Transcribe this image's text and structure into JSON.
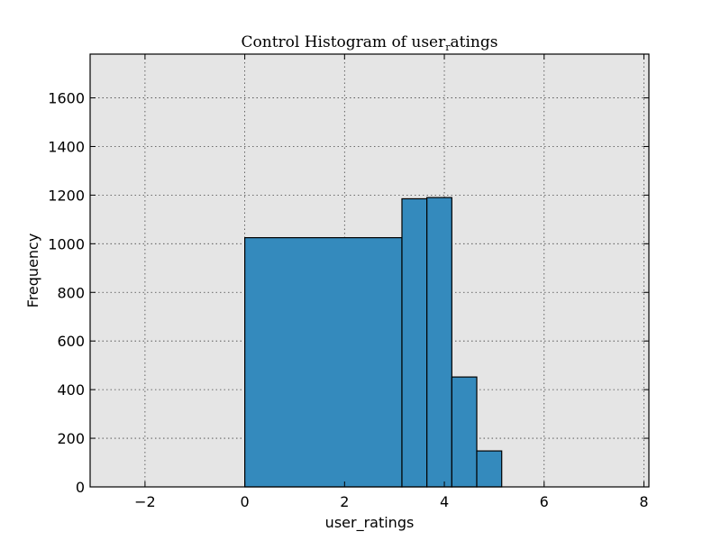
{
  "chart_data": {
    "type": "bar",
    "title": "Control Histogram of user",
    "title_subscript": "r",
    "title_suffix": "atings",
    "xlabel": "user_ratings",
    "ylabel": "Frequency",
    "xlim": [
      -3.1,
      8.1
    ],
    "ylim": [
      0,
      1780
    ],
    "xticks": [
      -2,
      0,
      2,
      4,
      6,
      8
    ],
    "xtick_labels": [
      "−2",
      "0",
      "2",
      "4",
      "6",
      "8"
    ],
    "yticks": [
      0,
      200,
      400,
      600,
      800,
      1000,
      1200,
      1400,
      1600
    ],
    "ytick_labels": [
      "0",
      "200",
      "400",
      "600",
      "800",
      "1000",
      "1200",
      "1400",
      "1600"
    ],
    "grid": true,
    "bar_color": "#348abd",
    "background_color": "#e5e5e5",
    "bins": [
      {
        "x0": 0.0,
        "x1": 3.15,
        "count": 1025
      },
      {
        "x0": 3.15,
        "x1": 3.65,
        "count": 1185
      },
      {
        "x0": 3.65,
        "x1": 4.15,
        "count": 1190
      },
      {
        "x0": 4.15,
        "x1": 4.65,
        "count": 452
      },
      {
        "x0": 4.65,
        "x1": 5.15,
        "count": 148
      }
    ]
  }
}
